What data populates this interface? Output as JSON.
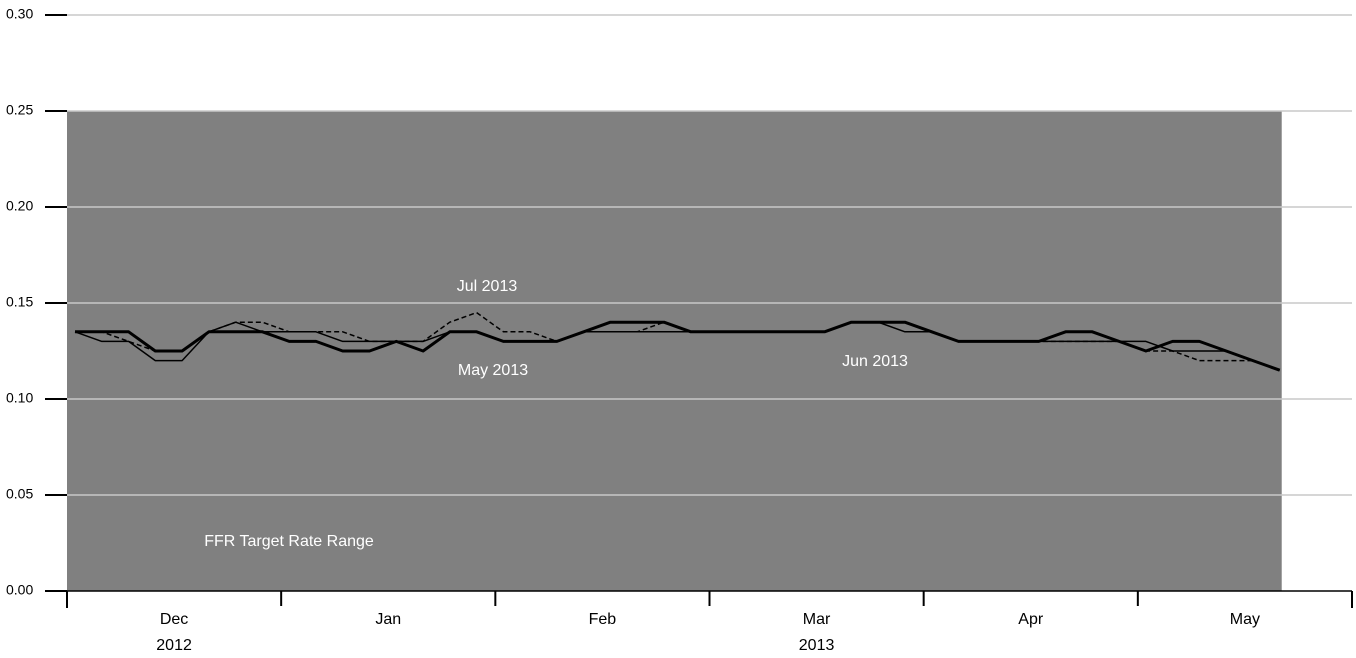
{
  "chart_data": {
    "type": "line",
    "categories": [
      null,
      null,
      null,
      null,
      "Dec",
      null,
      null,
      null,
      null,
      null,
      null,
      null,
      "Jan",
      null,
      null,
      null,
      null,
      null,
      null,
      null,
      "Feb",
      null,
      null,
      null,
      null,
      null,
      null,
      null,
      "Mar",
      null,
      null,
      null,
      null,
      null,
      null,
      null,
      "Apr",
      null,
      null,
      null,
      null,
      null,
      null,
      null,
      "May",
      null,
      null,
      null
    ],
    "years": [
      "2012",
      "2013"
    ],
    "series": [
      {
        "name": "May 2013",
        "color": "#000000",
        "values": [
          0.135,
          0.135,
          0.135,
          0.125,
          0.125,
          0.135,
          0.135,
          0.135,
          0.13,
          0.13,
          0.125,
          0.125,
          0.13,
          0.125,
          0.135,
          0.135,
          0.13,
          0.13,
          0.13,
          0.135,
          0.14,
          0.14,
          0.14,
          0.135,
          0.135,
          0.135,
          0.135,
          0.135,
          0.135,
          0.14,
          0.14,
          0.14,
          0.135,
          0.13,
          0.13,
          0.13,
          0.13,
          0.135,
          0.135,
          0.13,
          0.125,
          0.13,
          0.13,
          0.125,
          0.12,
          0.115,
          null,
          null
        ]
      },
      {
        "name": "Jun 2013",
        "color": "#000000",
        "values": [
          0.135,
          0.13,
          0.13,
          0.12,
          0.12,
          0.135,
          0.14,
          0.135,
          0.135,
          0.135,
          0.13,
          0.13,
          0.13,
          0.13,
          0.135,
          0.135,
          0.13,
          0.13,
          0.13,
          0.135,
          0.135,
          0.135,
          0.135,
          0.135,
          0.135,
          0.135,
          0.135,
          0.135,
          0.135,
          0.14,
          0.14,
          0.135,
          0.135,
          0.13,
          0.13,
          0.13,
          0.13,
          0.13,
          0.13,
          0.13,
          0.13,
          0.125,
          0.125,
          0.125,
          0.12,
          0.115,
          null,
          null
        ]
      },
      {
        "name": "Jul 2013",
        "color": "#000000",
        "values": [
          0.135,
          0.135,
          0.13,
          0.125,
          0.125,
          0.135,
          0.14,
          0.14,
          0.135,
          0.135,
          0.135,
          0.13,
          0.13,
          0.13,
          0.14,
          0.145,
          0.135,
          0.135,
          0.13,
          0.135,
          0.135,
          0.135,
          0.14,
          0.135,
          0.135,
          0.135,
          0.135,
          0.135,
          0.135,
          0.14,
          0.14,
          0.14,
          0.135,
          0.13,
          0.13,
          0.13,
          0.13,
          0.13,
          0.13,
          0.13,
          0.125,
          0.125,
          0.12,
          0.12,
          0.12,
          0.115,
          null,
          null
        ]
      }
    ],
    "range_band": {
      "label": "FFR Target Rate Range",
      "from": 0,
      "to": 0.25,
      "color": "#808080"
    },
    "ylim": [
      0,
      0.3
    ],
    "yticks": [
      {
        "value": 0,
        "label": "0.00"
      },
      {
        "value": 0.05,
        "label": "0.05"
      },
      {
        "value": 0.1,
        "label": "0.10"
      },
      {
        "value": 0.15,
        "label": "0.15"
      },
      {
        "value": 0.2,
        "label": "0.20"
      },
      {
        "value": 0.25,
        "label": "0.25"
      },
      {
        "value": 0.3,
        "label": "0.30"
      }
    ],
    "grid": true
  }
}
